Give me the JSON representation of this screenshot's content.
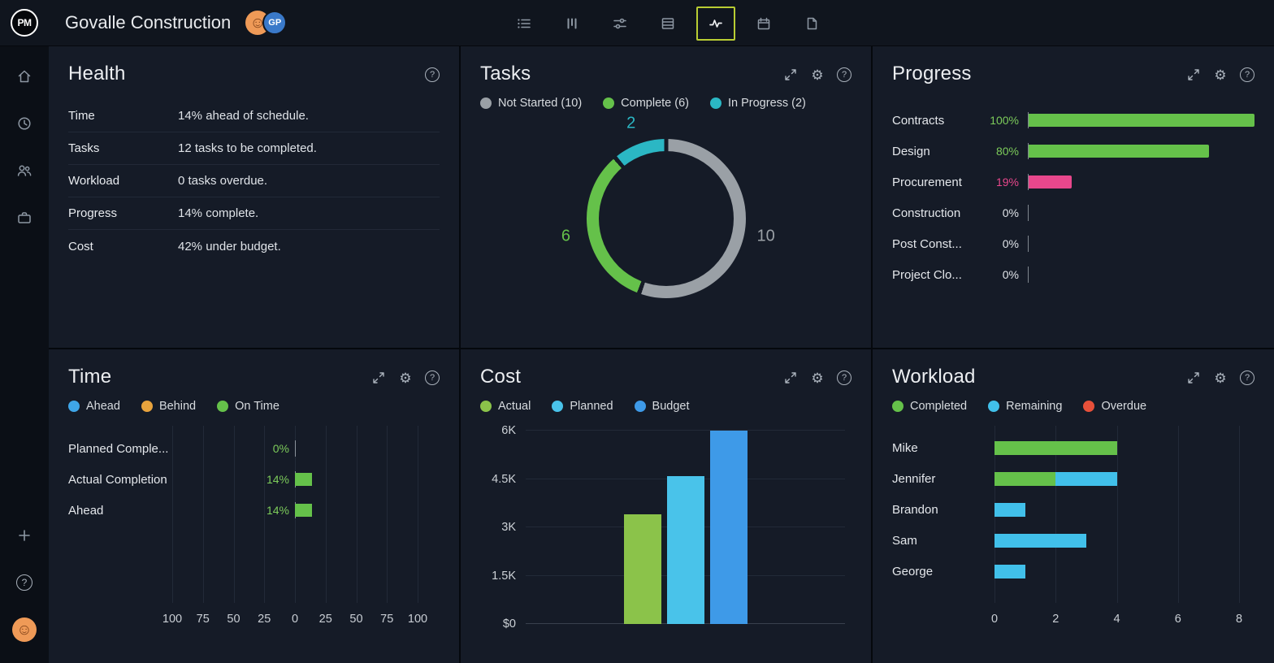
{
  "topbar": {
    "logo": "PM",
    "title": "Govalle Construction",
    "avatars": {
      "first": "person-avatar",
      "second_initials": "GP"
    },
    "views": [
      {
        "name": "list-view",
        "selected": false
      },
      {
        "name": "board-view",
        "selected": false
      },
      {
        "name": "filter-view",
        "selected": false
      },
      {
        "name": "sheet-view",
        "selected": false
      },
      {
        "name": "dashboard-view",
        "selected": true
      },
      {
        "name": "calendar-view",
        "selected": false
      },
      {
        "name": "docs-view",
        "selected": false
      }
    ]
  },
  "sidebar": {
    "items": [
      {
        "icon": "home"
      },
      {
        "icon": "clock"
      },
      {
        "icon": "team"
      },
      {
        "icon": "portfolio"
      }
    ],
    "footer": [
      {
        "icon": "add"
      },
      {
        "icon": "help"
      },
      {
        "icon": "user-avatar"
      }
    ]
  },
  "panels": {
    "health": {
      "title": "Health",
      "rows": [
        {
          "label": "Time",
          "text": "14% ahead of schedule."
        },
        {
          "label": "Tasks",
          "text": "12 tasks to be completed."
        },
        {
          "label": "Workload",
          "text": "0 tasks overdue."
        },
        {
          "label": "Progress",
          "text": "14% complete."
        },
        {
          "label": "Cost",
          "text": "42% under budget."
        }
      ]
    },
    "tasks": {
      "title": "Tasks",
      "legend": [
        {
          "label": "Not Started (10)",
          "color": "#9aa0a6"
        },
        {
          "label": "Complete (6)",
          "color": "#65c14a"
        },
        {
          "label": "In Progress (2)",
          "color": "#2bb7c4"
        }
      ],
      "chart_data": {
        "type": "pie",
        "donut": true,
        "total": 18,
        "slices": [
          {
            "label": "Not Started",
            "value": 10,
            "color": "#9aa0a6"
          },
          {
            "label": "Complete",
            "value": 6,
            "color": "#65c14a"
          },
          {
            "label": "In Progress",
            "value": 2,
            "color": "#2bb7c4"
          }
        ]
      }
    },
    "progress": {
      "title": "Progress",
      "chart_data": {
        "type": "bar",
        "orientation": "horizontal",
        "categories": [
          "Contracts",
          "Design",
          "Procurement",
          "Construction",
          "Post Const...",
          "Project Clo..."
        ],
        "values": [
          100,
          80,
          19,
          0,
          0,
          0
        ],
        "colors": [
          "#65c14a",
          "#65c14a",
          "#e8478c",
          "",
          "",
          ""
        ],
        "value_text_colors": [
          "#7ccb5a",
          "#7ccb5a",
          "#e8478c",
          "#dfe3e8",
          "#dfe3e8",
          "#dfe3e8"
        ],
        "value_suffix": "%",
        "xlim": [
          0,
          100
        ]
      }
    },
    "time": {
      "title": "Time",
      "legend": [
        {
          "label": "Ahead",
          "color": "#3fa6e8"
        },
        {
          "label": "Behind",
          "color": "#e8a33d"
        },
        {
          "label": "On Time",
          "color": "#65c14a"
        }
      ],
      "chart_data": {
        "type": "bar",
        "orientation": "horizontal",
        "diverging": true,
        "categories": [
          "Planned Comple...",
          "Actual Completion",
          "Ahead"
        ],
        "values": [
          0,
          14,
          14
        ],
        "colors": [
          "#65c14a",
          "#65c14a",
          "#65c14a"
        ],
        "value_suffix": "%",
        "axis_ticks": [
          100,
          75,
          50,
          25,
          0,
          25,
          50,
          75,
          100
        ],
        "xlim": [
          -100,
          100
        ]
      }
    },
    "cost": {
      "title": "Cost",
      "legend": [
        {
          "label": "Actual",
          "color": "#8bc34a"
        },
        {
          "label": "Planned",
          "color": "#49c3ea"
        },
        {
          "label": "Budget",
          "color": "#3e9ae8"
        }
      ],
      "chart_data": {
        "type": "bar",
        "categories": [
          "Actual",
          "Planned",
          "Budget"
        ],
        "values": [
          3400,
          4600,
          6000
        ],
        "colors": [
          "#8bc34a",
          "#49c3ea",
          "#3e9ae8"
        ],
        "y_ticks": [
          "$0",
          "1.5K",
          "3K",
          "4.5K",
          "6K"
        ],
        "ylim": [
          0,
          6000
        ]
      }
    },
    "workload": {
      "title": "Workload",
      "legend": [
        {
          "label": "Completed",
          "color": "#65c14a"
        },
        {
          "label": "Remaining",
          "color": "#41c0ea"
        },
        {
          "label": "Overdue",
          "color": "#e8503a"
        }
      ],
      "chart_data": {
        "type": "bar",
        "orientation": "horizontal",
        "stacked": true,
        "categories": [
          "Mike",
          "Jennifer",
          "Brandon",
          "Sam",
          "George"
        ],
        "series": [
          {
            "name": "Completed",
            "color": "#65c14a",
            "values": [
              4,
              2,
              0,
              0,
              0
            ]
          },
          {
            "name": "Remaining",
            "color": "#41c0ea",
            "values": [
              0,
              2,
              1,
              3,
              1
            ]
          },
          {
            "name": "Overdue",
            "color": "#e8503a",
            "values": [
              0,
              0,
              0,
              0,
              0
            ]
          }
        ],
        "x_ticks": [
          0,
          2,
          4,
          6,
          8
        ],
        "xlim": [
          0,
          8
        ]
      }
    }
  }
}
